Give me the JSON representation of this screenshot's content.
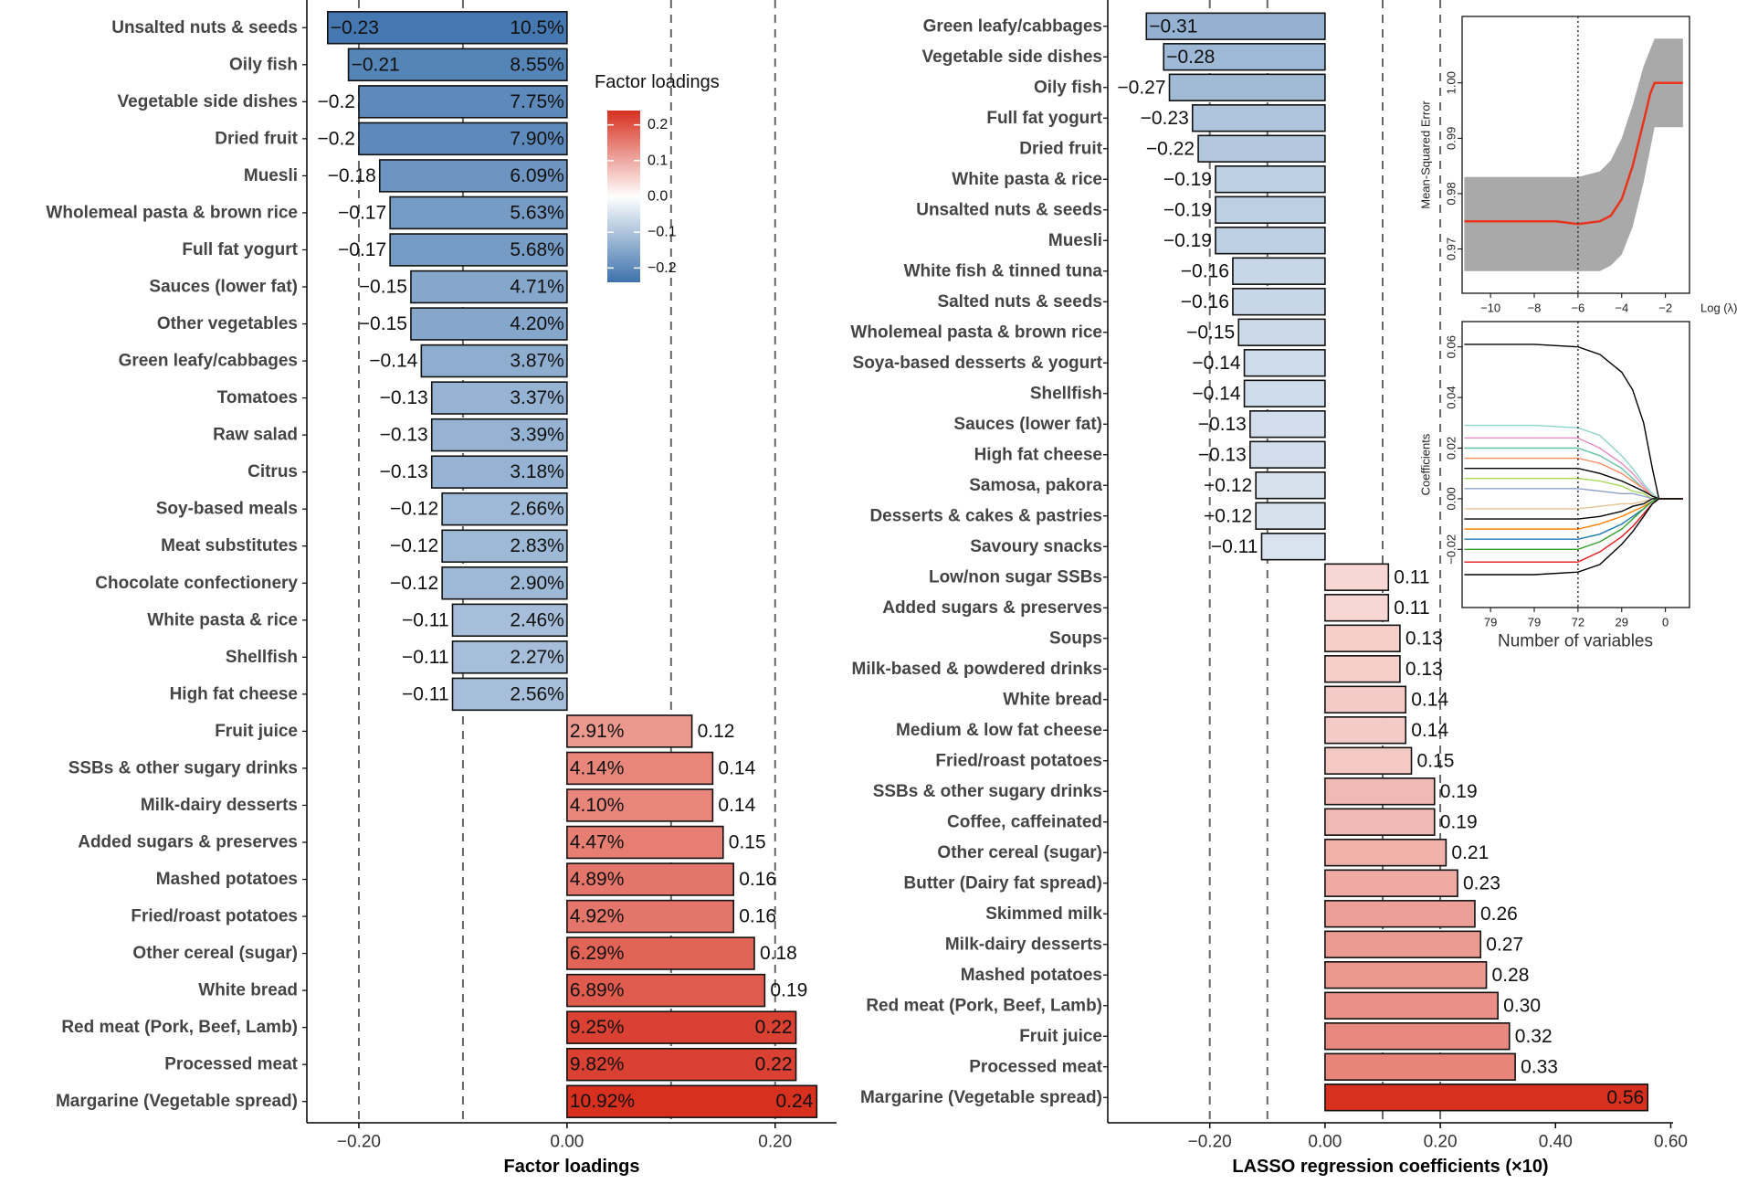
{
  "chart_data": [
    {
      "type": "bar",
      "orientation": "horizontal",
      "xlabel": "Factor loadings",
      "categories": [
        "Unsalted nuts & seeds",
        "Oily fish",
        "Vegetable side dishes",
        "Dried fruit",
        "Muesli",
        "Wholemeal pasta & brown rice",
        "Full fat yogurt",
        "Sauces (lower fat)",
        "Other vegetables",
        "Green leafy/cabbages",
        "Tomatoes",
        "Raw salad",
        "Citrus",
        "Soy-based meals",
        "Meat substitutes",
        "Chocolate confectionery",
        "White pasta & rice",
        "Shellfish",
        "High fat cheese",
        "Fruit juice",
        "SSBs & other sugary drinks",
        "Milk-dairy desserts",
        "Added sugars & preserves",
        "Mashed potatoes",
        "Fried/roast potatoes",
        "Other cereal (sugar)",
        "White bread",
        "Red meat (Pork, Beef, Lamb)",
        "Processed meat",
        "Margarine (Vegetable spread)"
      ],
      "values": [
        -0.23,
        -0.21,
        -0.2,
        -0.2,
        -0.18,
        -0.17,
        -0.17,
        -0.15,
        -0.15,
        -0.14,
        -0.13,
        -0.13,
        -0.13,
        -0.12,
        -0.12,
        -0.12,
        -0.11,
        -0.11,
        -0.11,
        0.12,
        0.14,
        0.14,
        0.15,
        0.16,
        0.16,
        0.18,
        0.19,
        0.22,
        0.22,
        0.24
      ],
      "value_labels": [
        "−0.23",
        "−0.21",
        "−0.2",
        "−0.2",
        "−0.18",
        "−0.17",
        "−0.17",
        "−0.15",
        "−0.15",
        "−0.14",
        "−0.13",
        "−0.13",
        "−0.13",
        "−0.12",
        "−0.12",
        "−0.12",
        "−0.11",
        "−0.11",
        "−0.11",
        "0.12",
        "0.14",
        "0.14",
        "0.15",
        "0.16",
        "0.16",
        "0.18",
        "0.19",
        "0.22",
        "0.22",
        "0.24"
      ],
      "share_labels": [
        "10.5%",
        "8.55%",
        "7.75%",
        "7.90%",
        "6.09%",
        "5.63%",
        "5.68%",
        "4.71%",
        "4.20%",
        "3.87%",
        "3.37%",
        "3.39%",
        "3.18%",
        "2.66%",
        "2.83%",
        "2.90%",
        "2.46%",
        "2.27%",
        "2.56%",
        "2.91%",
        "4.14%",
        "4.10%",
        "4.47%",
        "4.89%",
        "4.92%",
        "6.29%",
        "6.89%",
        "9.25%",
        "9.82%",
        "10.92%"
      ],
      "xlim": [
        -0.25,
        0.259
      ],
      "xticks": [
        {
          "value": -0.2,
          "label": "−0.20"
        },
        {
          "value": 0,
          "label": "0.00"
        },
        {
          "value": 0.2,
          "label": "0.20"
        }
      ],
      "ref_lines": [
        -0.2,
        -0.1,
        0.1,
        0.2
      ],
      "colorscale": [
        "#3d72ad",
        "#ffffff",
        "#d7301f"
      ],
      "colorlim": [
        -0.24,
        0.24
      ],
      "colorbar": {
        "title": "Factor loadings",
        "ticks": [
          0.2,
          0.1,
          {
            "value": 0,
            "label": "0.0"
          },
          {
            "value": -0.1,
            "label": "−0.1"
          },
          {
            "value": -0.2,
            "label": "−0.2"
          }
        ]
      }
    },
    {
      "type": "bar",
      "orientation": "horizontal",
      "xlabel": "LASSO regression coefficients (×10)",
      "categories": [
        "Green leafy/cabbages",
        "Vegetable side dishes",
        "Oily fish",
        "Full fat yogurt",
        "Dried fruit",
        "White pasta & rice",
        "Unsalted nuts & seeds",
        "Muesli",
        "White fish & tinned tuna",
        "Salted nuts & seeds",
        "Wholemeal pasta & brown rice",
        "Soya-based desserts & yogurt",
        "Shellfish",
        "Sauces (lower fat)",
        "High fat cheese",
        "Samosa, pakora",
        "Desserts & cakes & pastries",
        "Savoury snacks",
        "Low/non sugar SSBs",
        "Added sugars & preserves",
        "Soups",
        "Milk-based & powdered drinks",
        "White bread",
        "Medium & low fat cheese",
        "Fried/roast potatoes",
        "SSBs & other sugary drinks",
        "Coffee, caffeinated",
        "Other cereal (sugar)",
        "Butter (Dairy fat spread)",
        "Skimmed milk",
        "Milk-dairy desserts",
        "Mashed potatoes",
        "Red meat (Pork, Beef, Lamb)",
        "Fruit juice",
        "Processed meat",
        "Margarine (Vegetable spread)"
      ],
      "values": [
        -0.31,
        -0.28,
        -0.27,
        -0.23,
        -0.22,
        -0.19,
        -0.19,
        -0.19,
        -0.16,
        -0.16,
        -0.15,
        -0.14,
        -0.14,
        -0.13,
        -0.13,
        -0.12,
        -0.12,
        -0.11,
        0.11,
        0.11,
        0.13,
        0.13,
        0.14,
        0.14,
        0.15,
        0.19,
        0.19,
        0.21,
        0.23,
        0.26,
        0.27,
        0.28,
        0.3,
        0.32,
        0.33,
        0.56
      ],
      "value_labels": [
        "−0.31",
        "−0.28",
        "−0.27",
        "−0.23",
        "−0.22",
        "−0.19",
        "−0.19",
        "−0.19",
        "−0.16",
        "−0.16",
        "−0.15",
        "−0.14",
        "−0.14",
        "−0.13",
        "−0.13",
        "−0.12",
        "−0.12",
        "−0.11",
        "0.11",
        "0.11",
        "0.13",
        "0.13",
        "0.14",
        "0.14",
        "0.15",
        "0.19",
        "0.19",
        "0.21",
        "0.23",
        "0.26",
        "0.27",
        "0.28",
        "0.30",
        "0.32",
        "0.33",
        "0.56"
      ],
      "xlim": [
        -0.377,
        0.604
      ],
      "xticks": [
        {
          "value": -0.2,
          "label": "−0.20"
        },
        {
          "value": 0,
          "label": "0.00"
        },
        {
          "value": 0.2,
          "label": "0.20"
        },
        {
          "value": 0.4,
          "label": "0.40"
        },
        {
          "value": 0.6,
          "label": "0.60"
        }
      ],
      "ref_lines": [
        -0.2,
        -0.1,
        0.1,
        0.2
      ],
      "colorscale": [
        "#3d72ad",
        "#ffffff",
        "#d7301f"
      ],
      "colorlim": [
        -0.56,
        0.56
      ]
    },
    {
      "type": "line",
      "xlabel": "Log (λ)",
      "ylabel": "Mean-Squared Error",
      "x": [
        -11.2,
        -10,
        -9,
        -8,
        -7,
        -6,
        -5,
        -4.5,
        -4,
        -3.5,
        -3,
        -2.7,
        -2.5,
        -2,
        -1.5,
        -1.2
      ],
      "series": [
        {
          "color": "#e8341c",
          "values": [
            0.975,
            0.975,
            0.975,
            0.975,
            0.975,
            0.9745,
            0.975,
            0.976,
            0.979,
            0.985,
            0.993,
            0.998,
            1.0,
            1.0,
            1.0,
            1.0
          ]
        }
      ],
      "band": {
        "color": "#a9a9a9",
        "upper": [
          0.983,
          0.983,
          0.983,
          0.983,
          0.983,
          0.983,
          0.984,
          0.986,
          0.99,
          0.996,
          1.003,
          1.006,
          1.008,
          1.008,
          1.008,
          1.008
        ],
        "lower": [
          0.966,
          0.966,
          0.966,
          0.966,
          0.966,
          0.966,
          0.966,
          0.967,
          0.969,
          0.974,
          0.982,
          0.988,
          0.992,
          0.992,
          0.992,
          0.992
        ]
      },
      "vline": -6,
      "xlim": [
        -11.3,
        -0.9
      ],
      "ylim": [
        0.962,
        1.012
      ],
      "xticks": [
        {
          "value": -10,
          "label": "−10"
        },
        {
          "value": -8,
          "label": "−8"
        },
        {
          "value": -6,
          "label": "−6"
        },
        {
          "value": -4,
          "label": "−4"
        },
        {
          "value": -2,
          "label": "−2"
        }
      ],
      "yticks": [
        0.97,
        0.98,
        0.99,
        {
          "value": 1,
          "label": "1.00"
        }
      ]
    },
    {
      "type": "line",
      "xlabel": "Number of variables",
      "ylabel": "Coefficients",
      "x": [
        -11.2,
        -8,
        -6,
        -5,
        -4,
        -3.5,
        -3,
        -2.6,
        -2.3,
        -1.2
      ],
      "series": [
        {
          "color": "#000000",
          "values": [
            0.061,
            0.061,
            0.06,
            0.057,
            0.05,
            0.043,
            0.03,
            0.012,
            0,
            0
          ]
        },
        {
          "color": "#8dd3c7",
          "values": [
            0.029,
            0.029,
            0.028,
            0.025,
            0.017,
            0.012,
            0.006,
            0.002,
            0,
            0
          ]
        },
        {
          "color": "#e78ac3",
          "values": [
            0.024,
            0.024,
            0.024,
            0.02,
            0.014,
            0.01,
            0.005,
            0.001,
            0,
            0
          ]
        },
        {
          "color": "#66c2a5",
          "values": [
            0.02,
            0.02,
            0.02,
            0.017,
            0.012,
            0.008,
            0.004,
            0.001,
            0,
            0
          ]
        },
        {
          "color": "#fc8d62",
          "values": [
            0.016,
            0.016,
            0.016,
            0.014,
            0.01,
            0.007,
            0.004,
            0.001,
            0,
            0
          ]
        },
        {
          "color": "#000000",
          "values": [
            0.012,
            0.012,
            0.012,
            0.01,
            0.007,
            0.005,
            0.003,
            0.001,
            0,
            0
          ]
        },
        {
          "color": "#a6d854",
          "values": [
            0.008,
            0.008,
            0.008,
            0.007,
            0.005,
            0.003,
            0.002,
            0,
            0,
            0
          ]
        },
        {
          "color": "#8da0cb",
          "values": [
            0.004,
            0.004,
            0.004,
            0.003,
            0.002,
            0.002,
            0.001,
            0,
            0,
            0
          ]
        },
        {
          "color": "#e5c494",
          "values": [
            -0.004,
            -0.004,
            -0.004,
            -0.003,
            -0.002,
            -0.002,
            -0.001,
            0,
            0,
            0
          ]
        },
        {
          "color": "#000000",
          "values": [
            -0.008,
            -0.008,
            -0.008,
            -0.007,
            -0.005,
            -0.003,
            -0.002,
            0,
            0,
            0
          ]
        },
        {
          "color": "#ff7f00",
          "values": [
            -0.012,
            -0.012,
            -0.012,
            -0.01,
            -0.007,
            -0.005,
            -0.003,
            -0.001,
            0,
            0
          ]
        },
        {
          "color": "#1f78b4",
          "values": [
            -0.016,
            -0.016,
            -0.016,
            -0.014,
            -0.01,
            -0.007,
            -0.004,
            -0.001,
            0,
            0
          ]
        },
        {
          "color": "#33a02c",
          "values": [
            -0.02,
            -0.02,
            -0.02,
            -0.017,
            -0.012,
            -0.008,
            -0.004,
            -0.001,
            0,
            0
          ]
        },
        {
          "color": "#e31a1c",
          "values": [
            -0.025,
            -0.025,
            -0.025,
            -0.021,
            -0.015,
            -0.011,
            -0.006,
            -0.002,
            0,
            0
          ]
        },
        {
          "color": "#000000",
          "values": [
            -0.03,
            -0.03,
            -0.029,
            -0.026,
            -0.018,
            -0.013,
            -0.007,
            -0.002,
            0,
            0
          ]
        }
      ],
      "vline": -6,
      "xlim": [
        -11.3,
        -0.9
      ],
      "ylim": [
        -0.043,
        0.07
      ],
      "xticks": [
        {
          "value": -10,
          "label": "79"
        },
        {
          "value": -8,
          "label": "79"
        },
        {
          "value": -6,
          "label": "72"
        },
        {
          "value": -4,
          "label": "29"
        },
        {
          "value": -2,
          "label": "0"
        }
      ],
      "yticks": [
        {
          "value": -0.02,
          "label": "−0.02"
        },
        {
          "value": 0,
          "label": "0.00"
        },
        0.02,
        0.04,
        0.06
      ]
    }
  ]
}
